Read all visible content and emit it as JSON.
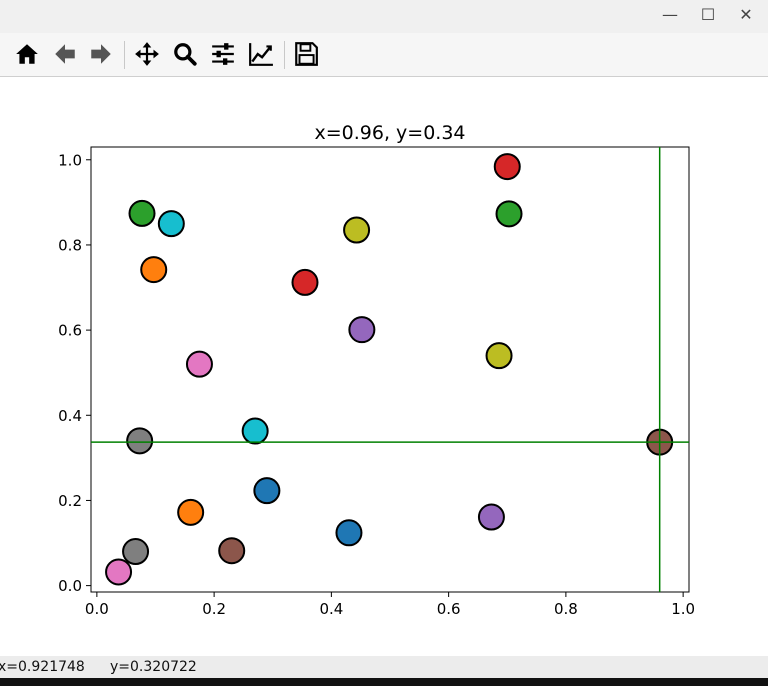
{
  "window": {
    "controls": {
      "minimize": "—",
      "maximize": "☐",
      "close": "✕"
    }
  },
  "toolbar": {
    "buttons": [
      {
        "name": "home-icon",
        "tooltip": "Home"
      },
      {
        "name": "back-arrow-icon",
        "tooltip": "Back"
      },
      {
        "name": "forward-arrow-icon",
        "tooltip": "Forward"
      },
      {
        "name": "pan-icon",
        "tooltip": "Pan"
      },
      {
        "name": "zoom-icon",
        "tooltip": "Zoom"
      },
      {
        "name": "subplots-config-icon",
        "tooltip": "Configure subplots"
      },
      {
        "name": "edit-axis-icon",
        "tooltip": "Edit axis"
      },
      {
        "name": "save-icon",
        "tooltip": "Save"
      }
    ]
  },
  "status": {
    "x": "x=0.921748",
    "y": "y=0.320722"
  },
  "chart_data": {
    "type": "scatter",
    "title": "x=0.96, y=0.34",
    "xlabel": "",
    "ylabel": "",
    "xlim": [
      -0.01,
      1.01
    ],
    "ylim": [
      -0.015,
      1.03
    ],
    "xticks": [
      "0.0",
      "0.2",
      "0.4",
      "0.6",
      "0.8",
      "1.0"
    ],
    "yticks": [
      "0.0",
      "0.2",
      "0.4",
      "0.6",
      "0.8",
      "1.0"
    ],
    "grid": false,
    "crosshair": {
      "x": 0.96,
      "y": 0.337,
      "color": "#008000"
    },
    "points": [
      {
        "x": 0.29,
        "y": 0.223,
        "color": "#1f77b4"
      },
      {
        "x": 0.43,
        "y": 0.124,
        "color": "#1f77b4"
      },
      {
        "x": 0.097,
        "y": 0.742,
        "color": "#ff7f0e"
      },
      {
        "x": 0.16,
        "y": 0.172,
        "color": "#ff7f0e"
      },
      {
        "x": 0.077,
        "y": 0.874,
        "color": "#2ca02c"
      },
      {
        "x": 0.703,
        "y": 0.873,
        "color": "#2ca02c"
      },
      {
        "x": 0.7,
        "y": 0.984,
        "color": "#d62728"
      },
      {
        "x": 0.355,
        "y": 0.712,
        "color": "#d62728"
      },
      {
        "x": 0.452,
        "y": 0.601,
        "color": "#9467bd"
      },
      {
        "x": 0.673,
        "y": 0.161,
        "color": "#9467bd"
      },
      {
        "x": 0.23,
        "y": 0.082,
        "color": "#8c564b"
      },
      {
        "x": 0.96,
        "y": 0.337,
        "color": "#8c564b"
      },
      {
        "x": 0.175,
        "y": 0.52,
        "color": "#e377c2"
      },
      {
        "x": 0.037,
        "y": 0.032,
        "color": "#e377c2"
      },
      {
        "x": 0.073,
        "y": 0.34,
        "color": "#7f7f7f"
      },
      {
        "x": 0.066,
        "y": 0.08,
        "color": "#7f7f7f"
      },
      {
        "x": 0.443,
        "y": 0.835,
        "color": "#bcbd22"
      },
      {
        "x": 0.686,
        "y": 0.54,
        "color": "#bcbd22"
      },
      {
        "x": 0.127,
        "y": 0.85,
        "color": "#17becf"
      },
      {
        "x": 0.27,
        "y": 0.363,
        "color": "#17becf"
      }
    ]
  }
}
